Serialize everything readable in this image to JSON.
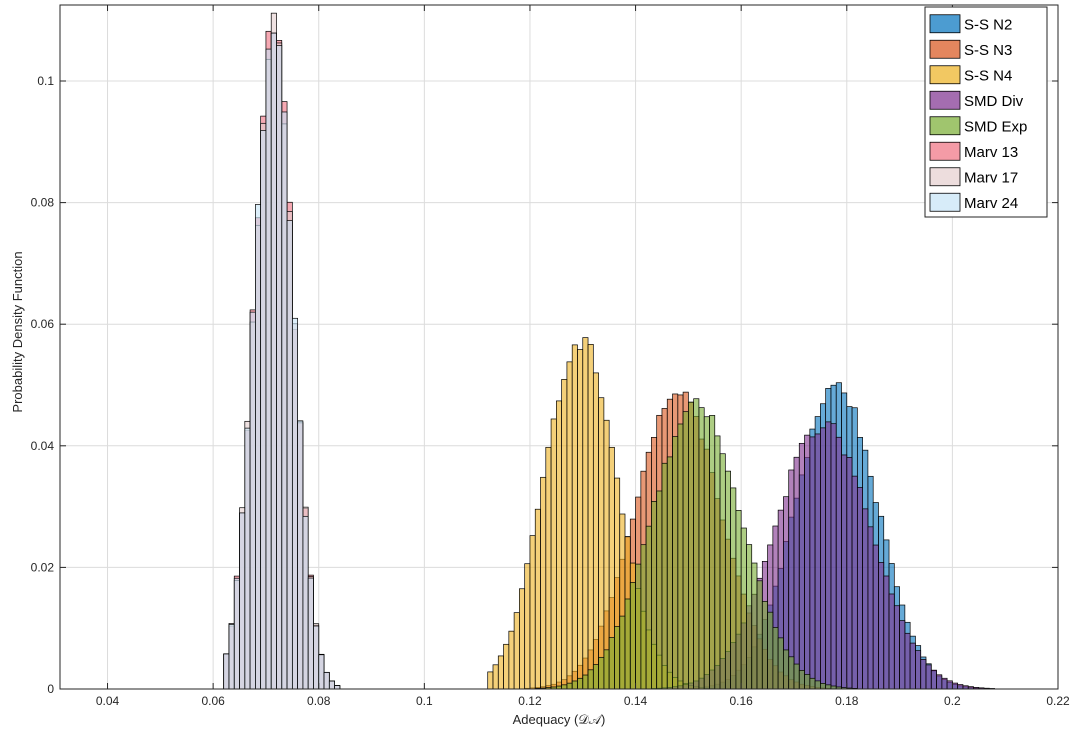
{
  "chart_data": {
    "type": "bar",
    "subtype": "overlaid-histogram",
    "xlabel": "Adequacy (𝒟𝒜)",
    "ylabel": "Probability Density Function",
    "xlim": [
      0.031,
      0.22
    ],
    "ylim": [
      0,
      0.1125
    ],
    "x_ticks": [
      0.04,
      0.06,
      0.08,
      0.1,
      0.12,
      0.14,
      0.16,
      0.18,
      0.2,
      0.22
    ],
    "x_tick_labels": [
      "0.04",
      "0.06",
      "0.08",
      "0.1",
      "0.12",
      "0.14",
      "0.16",
      "0.18",
      "0.2",
      "0.22"
    ],
    "y_ticks": [
      0,
      0.02,
      0.04,
      0.06,
      0.08,
      0.1
    ],
    "y_tick_labels": [
      "0",
      "0.02",
      "0.04",
      "0.06",
      "0.08",
      "0.1"
    ],
    "grid": true,
    "legend_position": "top-right",
    "bin_width": 0.001,
    "series": [
      {
        "name": "S-S N2",
        "color": "#0072BD",
        "peak_x": 0.178,
        "peak_density": 0.05,
        "std": 0.0078,
        "range": [
          0.14,
          0.215
        ]
      },
      {
        "name": "S-S N3",
        "color": "#D95319",
        "peak_x": 0.148,
        "peak_density": 0.0485,
        "std": 0.0082,
        "range": [
          0.115,
          0.185
        ]
      },
      {
        "name": "S-S N4",
        "color": "#EDB120",
        "peak_x": 0.1295,
        "peak_density": 0.0575,
        "std": 0.0069,
        "range": [
          0.112,
          0.16
        ]
      },
      {
        "name": "SMD Div",
        "color": "#7E2F8E",
        "peak_x": 0.1755,
        "peak_density": 0.0435,
        "std": 0.0091,
        "range": [
          0.135,
          0.222
        ]
      },
      {
        "name": "SMD Exp",
        "color": "#77AC30",
        "peak_x": 0.1515,
        "peak_density": 0.0465,
        "std": 0.0086,
        "range": [
          0.118,
          0.19
        ]
      },
      {
        "name": "Marv 13",
        "color": "#F07080",
        "peak_x": 0.0715,
        "peak_density": 0.109,
        "std": 0.0037,
        "range": [
          0.062,
          0.084
        ]
      },
      {
        "name": "Marv 17",
        "color": "#E5CFCF",
        "peak_x": 0.0715,
        "peak_density": 0.1085,
        "std": 0.0037,
        "range": [
          0.062,
          0.084
        ]
      },
      {
        "name": "Marv 24",
        "color": "#C6E4F7",
        "peak_x": 0.0715,
        "peak_density": 0.108,
        "std": 0.0037,
        "range": [
          0.062,
          0.084
        ]
      }
    ]
  }
}
